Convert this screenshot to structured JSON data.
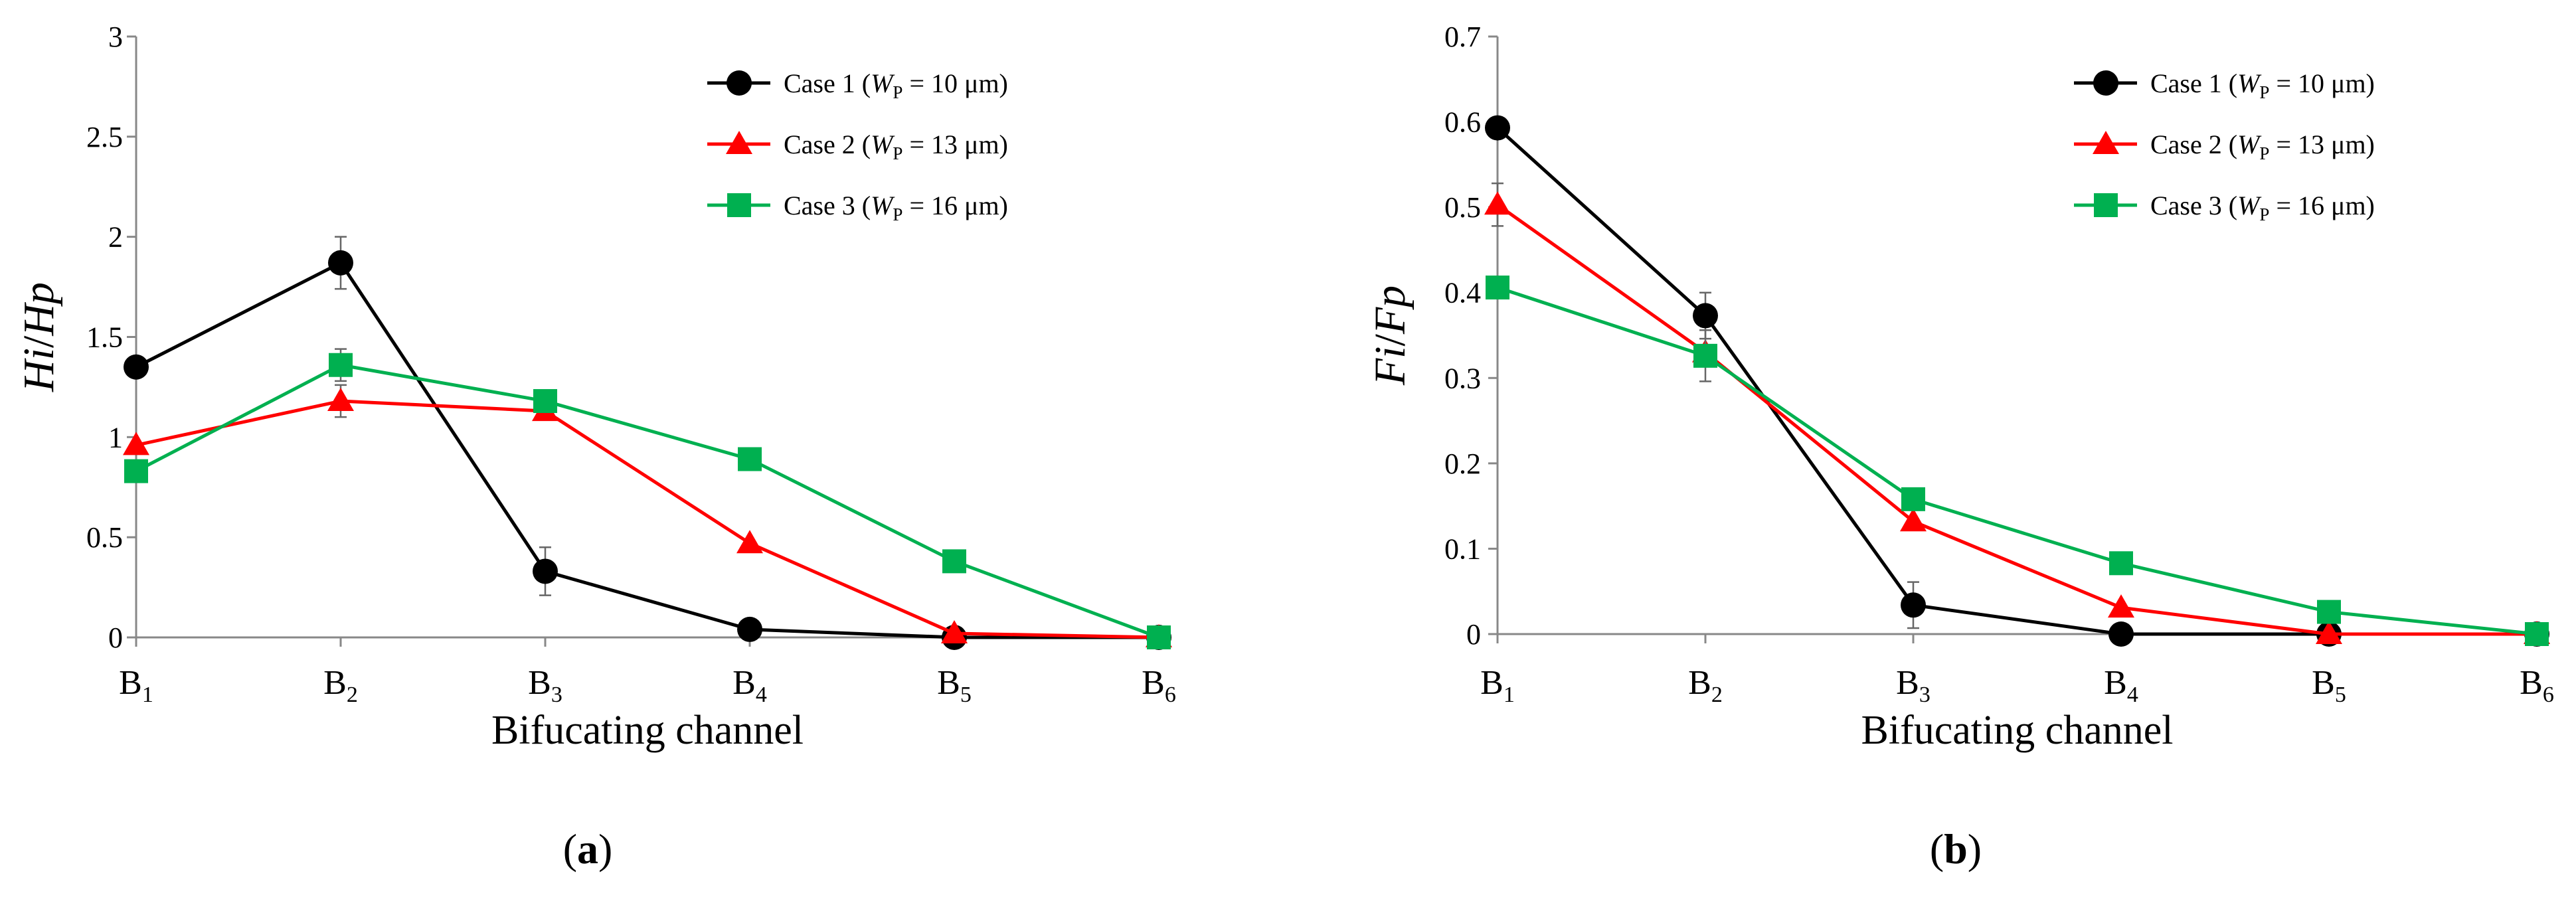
{
  "chart_data": [
    {
      "type": "line",
      "panel_label": "a",
      "ylabel": {
        "main": "Hi",
        "sep": "/",
        "sub": "Hp"
      },
      "xlabel": "Bifucating channel",
      "categories": [
        {
          "base": "B",
          "sub": "1"
        },
        {
          "base": "B",
          "sub": "2"
        },
        {
          "base": "B",
          "sub": "3"
        },
        {
          "base": "B",
          "sub": "4"
        },
        {
          "base": "B",
          "sub": "5"
        },
        {
          "base": "B",
          "sub": "6"
        }
      ],
      "ylim": [
        0,
        3
      ],
      "yticks": [
        "0",
        "0.5",
        "1",
        "1.5",
        "2",
        "2.5",
        "3"
      ],
      "legend_position": "top-right",
      "series": [
        {
          "name": {
            "prefix": "Case 1 (",
            "var": "W",
            "sub": "P",
            "suffix": " = 10 μm)"
          },
          "color": "#000000",
          "marker": "circle",
          "values": [
            1.35,
            1.87,
            0.33,
            0.04,
            0.0,
            0.0
          ],
          "errors": [
            null,
            0.13,
            0.12,
            null,
            null,
            null
          ]
        },
        {
          "name": {
            "prefix": "Case 2 (",
            "var": "W",
            "sub": "P",
            "suffix": " = 13 μm)"
          },
          "color": "#ff0000",
          "marker": "triangle",
          "values": [
            0.96,
            1.18,
            1.13,
            0.47,
            0.02,
            0.0
          ],
          "errors": [
            null,
            0.08,
            null,
            null,
            null,
            null
          ]
        },
        {
          "name": {
            "prefix": "Case 3 (",
            "var": "W",
            "sub": "P",
            "suffix": " = 16 μm)"
          },
          "color": "#00b050",
          "marker": "square",
          "values": [
            0.83,
            1.36,
            1.18,
            0.89,
            0.38,
            0.0
          ],
          "errors": [
            null,
            0.08,
            null,
            null,
            null,
            null
          ]
        }
      ]
    },
    {
      "type": "line",
      "panel_label": "b",
      "ylabel": {
        "main": "Fi",
        "sep": "/",
        "sub": "Fp"
      },
      "xlabel": "Bifucating channel",
      "categories": [
        {
          "base": "B",
          "sub": "1"
        },
        {
          "base": "B",
          "sub": "2"
        },
        {
          "base": "B",
          "sub": "3"
        },
        {
          "base": "B",
          "sub": "4"
        },
        {
          "base": "B",
          "sub": "5"
        },
        {
          "base": "B",
          "sub": "6"
        }
      ],
      "ylim": [
        0,
        0.7
      ],
      "yticks": [
        "0",
        "0.1",
        "0.2",
        "0.3",
        "0.4",
        "0.5",
        "0.6",
        "0.7"
      ],
      "legend_position": "top-right",
      "series": [
        {
          "name": {
            "prefix": "Case 1 (",
            "var": "W",
            "sub": "P",
            "suffix": " = 10 μm)"
          },
          "color": "#000000",
          "marker": "circle",
          "values": [
            0.593,
            0.373,
            0.034,
            0.0,
            0.0,
            0.0
          ],
          "errors": [
            null,
            0.027,
            0.027,
            null,
            null,
            null
          ]
        },
        {
          "name": {
            "prefix": "Case 2 (",
            "var": "W",
            "sub": "P",
            "suffix": " = 13 μm)"
          },
          "color": "#ff0000",
          "marker": "triangle",
          "values": [
            0.503,
            0.33,
            0.132,
            0.031,
            0.0,
            0.0
          ],
          "errors": [
            0.025,
            null,
            null,
            null,
            null,
            null
          ]
        },
        {
          "name": {
            "prefix": "Case 3 (",
            "var": "W",
            "sub": "P",
            "suffix": " = 16 μm)"
          },
          "color": "#00b050",
          "marker": "square",
          "values": [
            0.406,
            0.326,
            0.158,
            0.083,
            0.026,
            0.0
          ],
          "errors": [
            null,
            0.03,
            null,
            null,
            null,
            null
          ]
        }
      ]
    }
  ]
}
